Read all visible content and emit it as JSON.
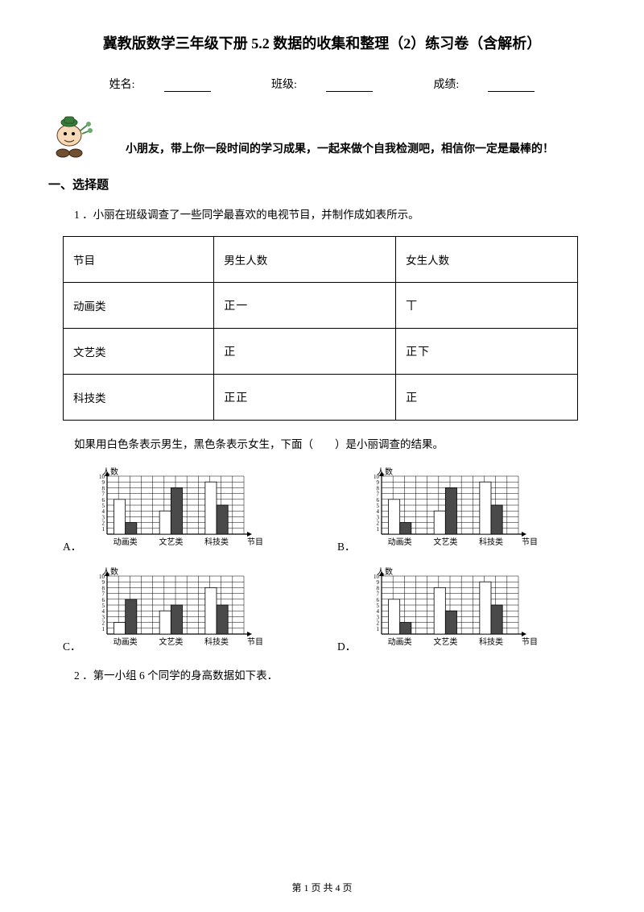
{
  "title": "冀教版数学三年级下册 5.2  数据的收集和整理（2）练习卷（含解析）",
  "info": {
    "name_label": "姓名:",
    "class_label": "班级:",
    "score_label": "成绩:"
  },
  "encourage": "小朋友，带上你一段时间的学习成果，一起来做个自我检测吧，相信你一定是最棒的！",
  "section1": "一、选择题",
  "q1": {
    "stem": "1 ．小丽在班级调查了一些同学最喜欢的电视节目，并制作成如表所示。",
    "table": {
      "headers": [
        "节目",
        "男生人数",
        "女生人数"
      ],
      "rows": [
        {
          "cat": "动画类",
          "boys": "正一",
          "girls": "丅"
        },
        {
          "cat": "文艺类",
          "boys": "正",
          "girls": "正下"
        },
        {
          "cat": "科技类",
          "boys": "正正",
          "girls": "正"
        }
      ]
    },
    "prompt": "如果用白色条表示男生，黑色条表示女生，下面（　　）是小丽调查的结果。",
    "chart_meta": {
      "y_title": "人数",
      "x_title": "节目",
      "categories": [
        "动画类",
        "文艺类",
        "科技类"
      ],
      "y_ticks": [
        1,
        2,
        3,
        4,
        5,
        6,
        7,
        8,
        9,
        10
      ],
      "grid_color": "#000000",
      "bg": "#ffffff",
      "bar_white": "#ffffff",
      "bar_black": "#4a4a4a",
      "font_size": 10
    },
    "options": {
      "A": {
        "pairs": [
          [
            6,
            2
          ],
          [
            4,
            8
          ],
          [
            9,
            5
          ]
        ]
      },
      "B": {
        "pairs": [
          [
            6,
            2
          ],
          [
            4,
            8
          ],
          [
            9,
            5
          ]
        ]
      },
      "C": {
        "pairs": [
          [
            2,
            6
          ],
          [
            4,
            5
          ],
          [
            8,
            5
          ]
        ]
      },
      "D": {
        "pairs": [
          [
            6,
            2
          ],
          [
            8,
            4
          ],
          [
            9,
            5
          ]
        ]
      }
    }
  },
  "q2": {
    "stem": "2 ．第一小组 6 个同学的身高数据如下表．"
  },
  "footer": {
    "text_a": "第 ",
    "page": "1",
    "text_b": " 页 共 ",
    "total": "4",
    "text_c": " 页"
  }
}
